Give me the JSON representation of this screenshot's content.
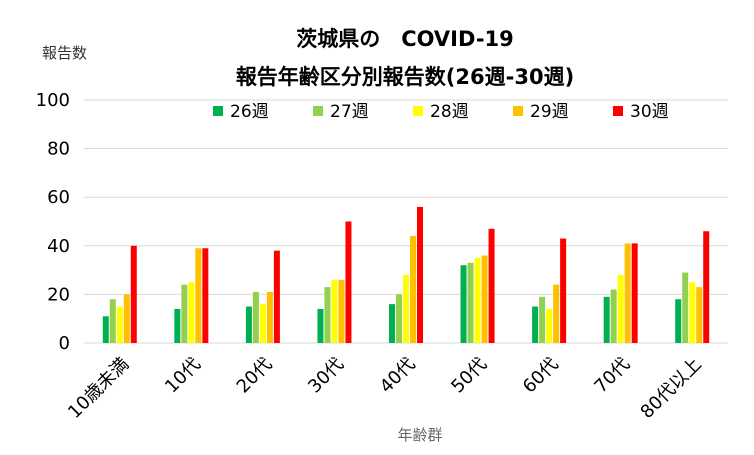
{
  "chart_data": {
    "type": "bar",
    "title_line1": "茨城県の　COVID-19",
    "title_line2": "報告年齢区分別報告数(26週-30週)",
    "ylabel": "報告数",
    "xlabel": "年齢群",
    "ylim": [
      0,
      100
    ],
    "yticks": [
      "0",
      "20",
      "40",
      "60",
      "80",
      "100"
    ],
    "ytick_values": [
      0,
      20,
      40,
      60,
      80,
      100
    ],
    "grid": true,
    "legend_position": "top",
    "categories": [
      "10歳未満",
      "10代",
      "20代",
      "30代",
      "40代",
      "50代",
      "60代",
      "70代",
      "80代以上"
    ],
    "series": [
      {
        "name": "26週",
        "color": "#00b050",
        "values": [
          11,
          14,
          15,
          14,
          16,
          32,
          15,
          19,
          18
        ]
      },
      {
        "name": "27週",
        "color": "#92d050",
        "values": [
          18,
          24,
          21,
          23,
          20,
          33,
          19,
          22,
          29
        ]
      },
      {
        "name": "28週",
        "color": "#ffff00",
        "values": [
          15,
          25,
          16,
          26,
          28,
          35,
          14,
          28,
          25
        ]
      },
      {
        "name": "29週",
        "color": "#ffc000",
        "values": [
          20,
          39,
          21,
          26,
          44,
          36,
          24,
          41,
          23
        ]
      },
      {
        "name": "30週",
        "color": "#ff0000",
        "values": [
          40,
          39,
          38,
          50,
          56,
          47,
          43,
          41,
          46
        ]
      }
    ]
  }
}
